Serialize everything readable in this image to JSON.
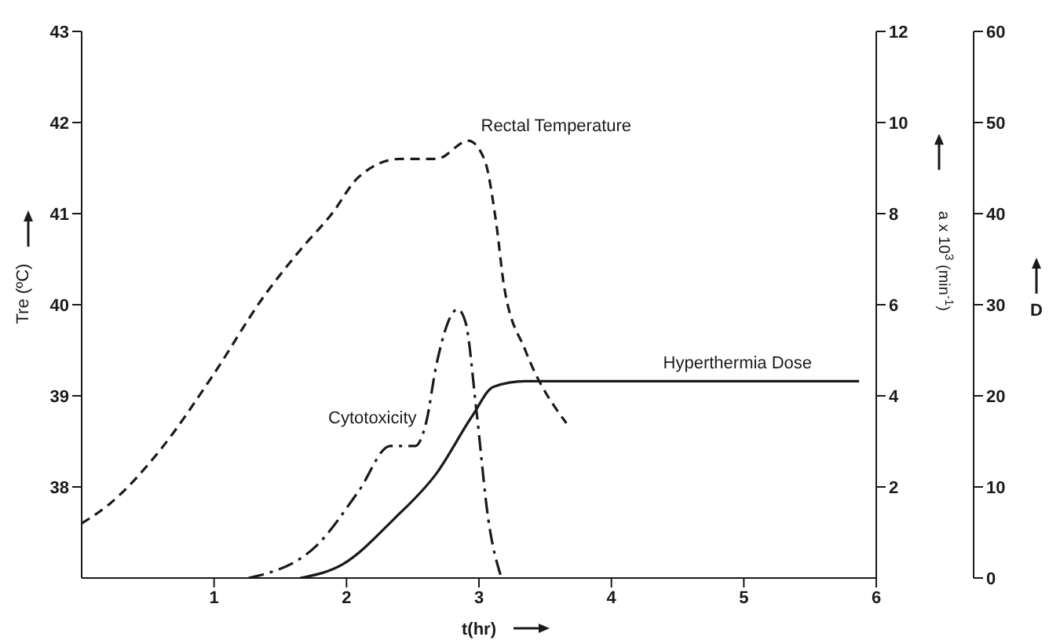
{
  "chart_data": {
    "type": "line",
    "xlabel": "t(hr)",
    "ylabel": "Tre (ºC)",
    "y2label": "a x 10$^{3}$ (min$^{-1}$)",
    "y3label": "D",
    "xlim": [
      0,
      6
    ],
    "xticks": [
      1,
      2,
      3,
      4,
      5,
      6
    ],
    "ylim": [
      37,
      43
    ],
    "yticks": [
      38,
      39,
      40,
      41,
      42,
      43
    ],
    "y2lim": [
      0,
      12
    ],
    "y2ticks": [
      2,
      4,
      6,
      8,
      10,
      12
    ],
    "y3lim": [
      0,
      60
    ],
    "y3ticks": [
      0,
      10,
      20,
      30,
      40,
      50,
      60
    ],
    "series": [
      {
        "name": "Rectal Temperature",
        "color": "#1a1a1a",
        "line_style": "dashed",
        "x": [
          0,
          0.2,
          0.59,
          0.98,
          1.38,
          1.65,
          1.89,
          2.09,
          2.4,
          2.68,
          2.92,
          3.04,
          3.13,
          3.19,
          3.35,
          3.66
        ],
        "values": [
          37.6,
          37.8,
          38.4,
          39.2,
          40.1,
          40.6,
          41.0,
          41.4,
          41.6,
          41.6,
          41.8,
          41.6,
          40.9,
          40.2,
          39.5,
          38.7
        ]
      },
      {
        "name": "Cytotoxicity",
        "color": "#1a1a1a",
        "line_style": "dotted",
        "axis": "y2",
        "x": [
          1.26,
          1.77,
          2.09,
          2.33,
          2.52,
          2.6,
          2.68,
          2.84,
          2.9,
          2.98,
          3.07,
          3.17
        ],
        "values": [
          0,
          0.7,
          1.9,
          2.9,
          2.9,
          3.4,
          4.7,
          5.9,
          5.6,
          3.7,
          1.3,
          0
        ]
      },
      {
        "name": "Hyperthermia Dose",
        "color": "#1a1a1a",
        "line_style": "solid",
        "axis": "y3",
        "x": [
          1.65,
          1.97,
          2.36,
          2.68,
          2.95,
          3.11,
          3.35,
          5.87
        ],
        "values": [
          0,
          1.5,
          6.5,
          11.5,
          17.8,
          21,
          21.6,
          21.6
        ]
      }
    ]
  }
}
